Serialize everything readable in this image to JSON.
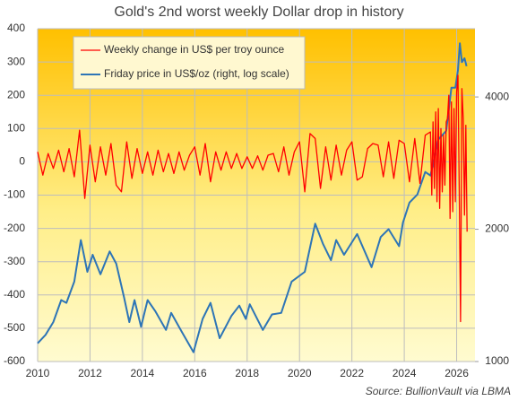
{
  "chart_data": {
    "type": "line",
    "title": "Gold's 2nd worst weekly Dollar drop in history",
    "source": "Source: BullionVault via LBMA",
    "xlim": [
      2010,
      2026.7
    ],
    "xticks": [
      2010,
      2012,
      2014,
      2016,
      2018,
      2020,
      2022,
      2024,
      2026
    ],
    "ylim": [
      -600,
      400
    ],
    "yticks": [
      -600,
      -500,
      -400,
      -300,
      -200,
      -100,
      0,
      100,
      200,
      300,
      400
    ],
    "y2lim": [
      1000,
      5720
    ],
    "y2ticks": [
      1000,
      2000,
      4000
    ],
    "y2log": true,
    "grid": true,
    "legend": "top-left",
    "series": [
      {
        "name": "Weekly change in US$ per troy ounce",
        "color": "#ff0000",
        "x": [
          2010.0,
          2010.2,
          2010.4,
          2010.6,
          2010.8,
          2011.0,
          2011.2,
          2011.4,
          2011.6,
          2011.8,
          2012.0,
          2012.2,
          2012.4,
          2012.6,
          2012.8,
          2013.0,
          2013.2,
          2013.4,
          2013.6,
          2013.8,
          2014.0,
          2014.2,
          2014.4,
          2014.6,
          2014.8,
          2015.0,
          2015.2,
          2015.4,
          2015.6,
          2015.8,
          2016.0,
          2016.2,
          2016.4,
          2016.6,
          2016.8,
          2017.0,
          2017.2,
          2017.4,
          2017.6,
          2017.8,
          2018.0,
          2018.2,
          2018.4,
          2018.6,
          2018.8,
          2019.0,
          2019.2,
          2019.4,
          2019.6,
          2019.8,
          2020.0,
          2020.2,
          2020.4,
          2020.6,
          2020.8,
          2021.0,
          2021.2,
          2021.4,
          2021.6,
          2021.8,
          2022.0,
          2022.2,
          2022.4,
          2022.6,
          2022.8,
          2023.0,
          2023.2,
          2023.4,
          2023.6,
          2023.8,
          2024.0,
          2024.2,
          2024.4,
          2024.6,
          2024.8,
          2025.0,
          2025.05,
          2025.1,
          2025.15,
          2025.2,
          2025.25,
          2025.3,
          2025.35,
          2025.4,
          2025.45,
          2025.5,
          2025.55,
          2025.6,
          2025.65,
          2025.7,
          2025.75,
          2025.8,
          2025.85,
          2025.9,
          2025.95,
          2026.0,
          2026.05,
          2026.1,
          2026.15,
          2026.2,
          2026.25,
          2026.3,
          2026.35,
          2026.4
        ],
        "values": [
          30,
          -40,
          25,
          -20,
          35,
          -30,
          40,
          -45,
          95,
          -110,
          50,
          -60,
          45,
          -40,
          55,
          -70,
          -90,
          60,
          -50,
          40,
          -35,
          30,
          -40,
          35,
          -30,
          25,
          -35,
          30,
          -25,
          20,
          45,
          -40,
          55,
          -60,
          30,
          -25,
          30,
          -20,
          25,
          -20,
          15,
          -20,
          18,
          -25,
          20,
          25,
          -30,
          45,
          -40,
          30,
          60,
          -90,
          85,
          70,
          -80,
          45,
          -55,
          50,
          -40,
          35,
          60,
          -55,
          -45,
          40,
          55,
          50,
          -45,
          60,
          -50,
          65,
          55,
          -60,
          70,
          -65,
          80,
          90,
          -100,
          120,
          -80,
          150,
          -120,
          160,
          -140,
          100,
          -90,
          80,
          -70,
          120,
          130,
          200,
          -170,
          180,
          -150,
          160,
          -120,
          210,
          260,
          -100,
          -480,
          220,
          130,
          -160,
          110,
          -210
        ]
      },
      {
        "name": "Friday price in US$/oz (right, log scale)",
        "color": "#2e75b6",
        "axis": "y2",
        "x": [
          2010.0,
          2010.3,
          2010.6,
          2010.9,
          2011.1,
          2011.4,
          2011.65,
          2011.9,
          2012.1,
          2012.4,
          2012.75,
          2013.0,
          2013.3,
          2013.5,
          2013.7,
          2013.95,
          2014.2,
          2014.5,
          2014.9,
          2015.1,
          2015.5,
          2015.95,
          2016.3,
          2016.6,
          2016.95,
          2017.4,
          2017.7,
          2017.95,
          2018.1,
          2018.6,
          2018.95,
          2019.3,
          2019.7,
          2020.2,
          2020.6,
          2020.9,
          2021.2,
          2021.4,
          2021.7,
          2022.2,
          2022.75,
          2023.1,
          2023.4,
          2023.8,
          2023.95,
          2024.2,
          2024.5,
          2024.8,
          2025.0,
          2025.3,
          2025.6,
          2025.8,
          2025.95,
          2026.05,
          2026.12,
          2026.2,
          2026.3,
          2026.38
        ],
        "values": [
          1100,
          1150,
          1230,
          1380,
          1360,
          1520,
          1890,
          1600,
          1750,
          1580,
          1780,
          1670,
          1400,
          1230,
          1380,
          1200,
          1380,
          1300,
          1180,
          1290,
          1170,
          1050,
          1250,
          1360,
          1130,
          1270,
          1340,
          1250,
          1350,
          1180,
          1280,
          1290,
          1520,
          1600,
          2060,
          1850,
          1700,
          1890,
          1750,
          1950,
          1640,
          1920,
          2000,
          1830,
          2070,
          2300,
          2400,
          2700,
          2650,
          3200,
          3350,
          4200,
          4200,
          4600,
          5300,
          4800,
          4900,
          4700
        ]
      }
    ]
  }
}
